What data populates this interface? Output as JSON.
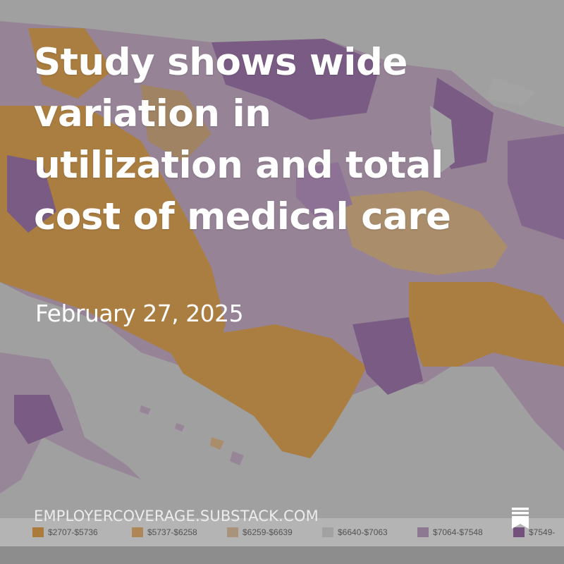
{
  "post": {
    "title": "Study shows wide variation in utilization and total cost of medical care",
    "date": "February 27, 2025",
    "site": "EMPLOYERCOVERAGE.SUBSTACK.COM"
  },
  "map": {
    "legend": [
      {
        "label": "$2707-$5736",
        "color": "#c97d14"
      },
      {
        "label": "$5737-$6258",
        "color": "#d19042"
      },
      {
        "label": "$6259-$6639",
        "color": "#c9a47c"
      },
      {
        "label": "$6640-$7063",
        "color": "#bcbcbc"
      },
      {
        "label": "$7064-$7548",
        "color": "#9b7aa4"
      },
      {
        "label": "$7549-",
        "color": "#6e3a7e"
      }
    ]
  },
  "icons": {
    "bookmark": "substack-bookmark-icon"
  }
}
